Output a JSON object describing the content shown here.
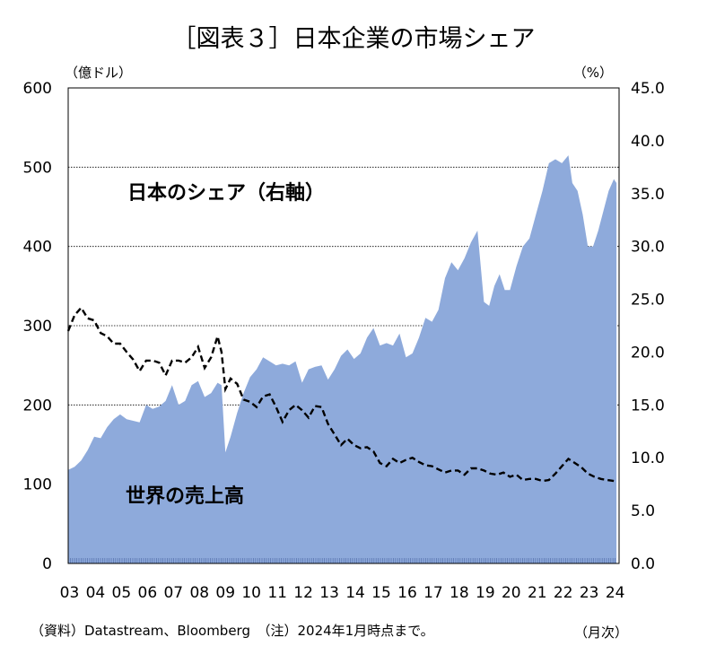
{
  "chart_data": {
    "type": "area",
    "title": "［図表３］日本企業の市場シェア",
    "y_left": {
      "unit": "（億ドル）",
      "ylim": [
        0,
        600
      ],
      "ticks": [
        "0",
        "100",
        "200",
        "300",
        "400",
        "500",
        "600"
      ]
    },
    "y_right": {
      "unit": "（%）",
      "ylim": [
        0,
        45
      ],
      "ticks": [
        "0.0",
        "5.0",
        "10.0",
        "15.0",
        "20.0",
        "25.0",
        "30.0",
        "35.0",
        "40.0",
        "45.0"
      ]
    },
    "x": {
      "unit": "（月次）",
      "ticks": [
        "03",
        "04",
        "05",
        "06",
        "07",
        "08",
        "09",
        "10",
        "11",
        "12",
        "13",
        "14",
        "15",
        "16",
        "17",
        "18",
        "19",
        "20",
        "21",
        "22",
        "23",
        "24"
      ]
    },
    "gridlines_left": [
      200,
      300,
      400,
      500
    ],
    "series": [
      {
        "name": "世界の売上高",
        "axis": "left",
        "style": "area",
        "color": "#8eaadb",
        "x": [
          2003.0,
          2003.25,
          2003.5,
          2003.75,
          2004.0,
          2004.25,
          2004.5,
          2004.75,
          2005.0,
          2005.25,
          2005.5,
          2005.75,
          2006.0,
          2006.25,
          2006.5,
          2006.75,
          2007.0,
          2007.25,
          2007.5,
          2007.75,
          2008.0,
          2008.25,
          2008.5,
          2008.75,
          2008.9,
          2009.05,
          2009.25,
          2009.5,
          2009.75,
          2010.0,
          2010.25,
          2010.5,
          2010.75,
          2011.0,
          2011.25,
          2011.5,
          2011.75,
          2012.0,
          2012.25,
          2012.5,
          2012.75,
          2013.0,
          2013.25,
          2013.5,
          2013.75,
          2014.0,
          2014.25,
          2014.5,
          2014.75,
          2015.0,
          2015.25,
          2015.5,
          2015.75,
          2016.0,
          2016.25,
          2016.5,
          2016.75,
          2017.0,
          2017.25,
          2017.5,
          2017.75,
          2018.0,
          2018.25,
          2018.5,
          2018.75,
          2019.0,
          2019.2,
          2019.4,
          2019.6,
          2019.8,
          2020.0,
          2020.25,
          2020.5,
          2020.75,
          2021.0,
          2021.25,
          2021.5,
          2021.75,
          2022.0,
          2022.25,
          2022.4,
          2022.6,
          2022.8,
          2023.0,
          2023.2,
          2023.4,
          2023.6,
          2023.8,
          2024.0,
          2024.1
        ],
        "values": [
          118,
          122,
          130,
          143,
          160,
          158,
          172,
          182,
          188,
          182,
          180,
          178,
          200,
          195,
          198,
          205,
          225,
          200,
          205,
          225,
          230,
          210,
          215,
          228,
          225,
          140,
          160,
          190,
          215,
          235,
          245,
          260,
          255,
          250,
          252,
          250,
          255,
          228,
          245,
          248,
          250,
          232,
          245,
          262,
          270,
          258,
          265,
          285,
          297,
          275,
          278,
          275,
          290,
          260,
          265,
          285,
          310,
          305,
          320,
          360,
          380,
          370,
          385,
          405,
          420,
          330,
          325,
          350,
          365,
          345,
          345,
          375,
          400,
          410,
          440,
          470,
          505,
          510,
          505,
          515,
          480,
          470,
          440,
          400,
          400,
          420,
          445,
          470,
          485,
          480
        ]
      },
      {
        "name": "日本のシェア（右軸）",
        "axis": "right",
        "style": "dashed",
        "color": "#000000",
        "x": [
          2003.0,
          2003.25,
          2003.5,
          2003.75,
          2004.0,
          2004.25,
          2004.5,
          2004.75,
          2005.0,
          2005.25,
          2005.5,
          2005.75,
          2006.0,
          2006.25,
          2006.5,
          2006.75,
          2007.0,
          2007.25,
          2007.5,
          2007.75,
          2008.0,
          2008.25,
          2008.5,
          2008.75,
          2008.9,
          2009.05,
          2009.25,
          2009.5,
          2009.75,
          2010.0,
          2010.25,
          2010.5,
          2010.75,
          2011.0,
          2011.25,
          2011.5,
          2011.75,
          2012.0,
          2012.25,
          2012.5,
          2012.75,
          2013.0,
          2013.25,
          2013.5,
          2013.75,
          2014.0,
          2014.25,
          2014.5,
          2014.75,
          2015.0,
          2015.25,
          2015.5,
          2015.75,
          2016.0,
          2016.25,
          2016.5,
          2016.75,
          2017.0,
          2017.25,
          2017.5,
          2017.75,
          2018.0,
          2018.25,
          2018.5,
          2018.75,
          2019.0,
          2019.25,
          2019.5,
          2019.75,
          2020.0,
          2020.25,
          2020.5,
          2020.75,
          2021.0,
          2021.25,
          2021.5,
          2021.75,
          2022.0,
          2022.25,
          2022.5,
          2022.75,
          2023.0,
          2023.25,
          2023.5,
          2023.75,
          2024.0,
          2024.1
        ],
        "values": [
          22.0,
          23.5,
          24.2,
          23.2,
          23.0,
          21.8,
          21.5,
          20.8,
          20.8,
          20.0,
          19.3,
          18.2,
          19.2,
          19.2,
          19.0,
          17.8,
          19.2,
          19.2,
          19.0,
          19.5,
          20.5,
          18.5,
          19.5,
          21.5,
          20.0,
          16.5,
          17.5,
          17.0,
          15.5,
          15.3,
          14.8,
          15.8,
          16.0,
          14.8,
          13.4,
          14.5,
          15.0,
          14.5,
          13.8,
          14.9,
          14.8,
          13.2,
          12.2,
          11.2,
          11.8,
          11.2,
          10.9,
          11.0,
          10.6,
          9.5,
          9.2,
          9.9,
          9.5,
          9.8,
          10.0,
          9.6,
          9.3,
          9.2,
          8.9,
          8.6,
          8.8,
          8.8,
          8.4,
          9.0,
          9.0,
          8.8,
          8.5,
          8.4,
          8.6,
          8.2,
          8.4,
          7.9,
          8.0,
          8.0,
          7.8,
          7.9,
          8.5,
          9.2,
          9.9,
          9.5,
          9.1,
          8.5,
          8.2,
          8.0,
          7.9,
          7.8,
          7.9
        ]
      }
    ],
    "annotations": [
      {
        "text": "日本のシェア（右軸）",
        "series": "日本のシェア（右軸）"
      },
      {
        "text": "世界の売上高",
        "series": "世界の売上高"
      }
    ],
    "footnote": "（資料）Datastream、Bloomberg　（注）2024年1月時点まで。"
  }
}
